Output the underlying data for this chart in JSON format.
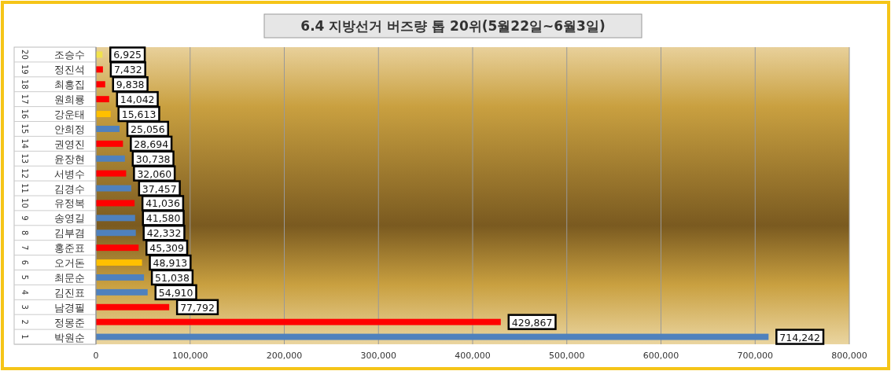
{
  "chart_data": {
    "type": "bar",
    "orientation": "horizontal",
    "title": "6.4 지방선거 버즈량 톱 20위(5월22일~6월3일)",
    "categories": [
      "조승수",
      "정진석",
      "최흥집",
      "원희룡",
      "강운태",
      "안희정",
      "권영진",
      "윤장현",
      "서병수",
      "김경수",
      "유정복",
      "송영길",
      "김부겸",
      "홍준표",
      "오거돈",
      "최문순",
      "김진표",
      "남경필",
      "정몽준",
      "박원순"
    ],
    "values": [
      6925,
      7432,
      9838,
      14042,
      15613,
      25056,
      28694,
      30738,
      32060,
      37457,
      41036,
      41580,
      42332,
      45309,
      48913,
      51038,
      54910,
      77792,
      429867,
      714242
    ],
    "colors": [
      "#f2e34c",
      "#ff0000",
      "#ff0000",
      "#ff0000",
      "#ffc000",
      "#4f81bd",
      "#ff0000",
      "#4f81bd",
      "#ff0000",
      "#4f81bd",
      "#ff0000",
      "#4f81bd",
      "#4f81bd",
      "#ff0000",
      "#ffc000",
      "#4f81bd",
      "#4f81bd",
      "#ff0000",
      "#ff0000",
      "#4f81bd"
    ],
    "value_labels": [
      "6,925",
      "7,432",
      "9,838",
      "14,042",
      "15,613",
      "25,056",
      "28,694",
      "30,738",
      "32,060",
      "37,457",
      "41,036",
      "41,580",
      "42,332",
      "45,309",
      "48,913",
      "51,038",
      "54,910",
      "77,792",
      "429,867",
      "714,242"
    ],
    "annotations": [
      "20",
      "19",
      "18",
      "17",
      "16",
      "15",
      "14",
      "13",
      "12",
      "11",
      "10",
      "9",
      "8",
      "7",
      "6",
      "5",
      "4",
      "3",
      "2",
      "1"
    ],
    "xlim": [
      0,
      800000
    ],
    "xticks": [
      0,
      {
        "value": 100000,
        "label": "100,000"
      },
      {
        "value": 200000,
        "label": "200,000"
      },
      {
        "value": 300000,
        "label": "300,000"
      },
      {
        "value": 400000,
        "label": "400,000"
      },
      {
        "value": 500000,
        "label": "500,000"
      },
      {
        "value": 600000,
        "label": "600,000"
      },
      {
        "value": 700000,
        "label": "700,000"
      },
      {
        "value": 800000,
        "label": "800,000"
      }
    ],
    "grid": "x"
  }
}
